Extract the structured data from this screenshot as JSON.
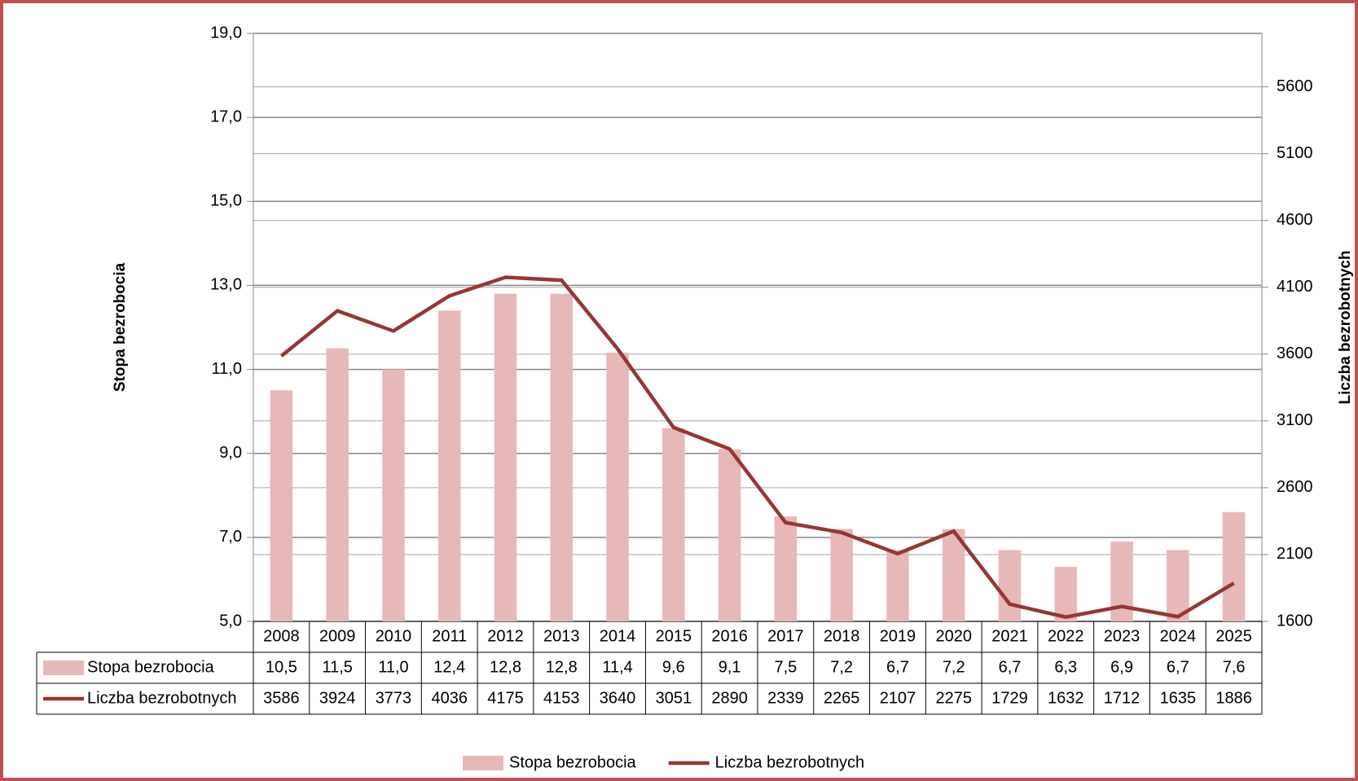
{
  "chart_data": {
    "type": "bar-line",
    "categories": [
      "2008",
      "2009",
      "2010",
      "2011",
      "2012",
      "2013",
      "2014",
      "2015",
      "2016",
      "2017",
      "2018",
      "2019",
      "2020",
      "2021",
      "2022",
      "2023",
      "2024",
      "2025"
    ],
    "series": [
      {
        "name": "Stopa bezrobocia",
        "type": "bar",
        "color": "#e6b8b7",
        "values": [
          10.5,
          11.5,
          11.0,
          12.4,
          12.8,
          12.8,
          11.4,
          9.6,
          9.1,
          7.5,
          7.2,
          6.7,
          7.2,
          6.7,
          6.3,
          6.9,
          6.7,
          7.6
        ],
        "value_labels": [
          "10,5",
          "11,5",
          "11,0",
          "12,4",
          "12,8",
          "12,8",
          "11,4",
          "9,6",
          "9,1",
          "7,5",
          "7,2",
          "6,7",
          "7,2",
          "6,7",
          "6,3",
          "6,9",
          "6,7",
          "7,6"
        ]
      },
      {
        "name": "Liczba bezrobotnych",
        "type": "line",
        "axis": "y2",
        "color": "#953735",
        "values": [
          3586,
          3924,
          3773,
          4036,
          4175,
          4153,
          3640,
          3051,
          2890,
          2339,
          2265,
          2107,
          2275,
          1729,
          1632,
          1712,
          1635,
          1886
        ]
      }
    ],
    "y_label": "Stopa bezrobocia",
    "y2_label": "Liczba  bezrobotnych",
    "ylim": [
      5,
      19
    ],
    "yticks": [
      {
        "value": 5,
        "label": "5,0"
      },
      {
        "value": 7,
        "label": "7,0"
      },
      {
        "value": 9,
        "label": "9,0"
      },
      {
        "value": 11,
        "label": "11,0"
      },
      {
        "value": 13,
        "label": "13,0"
      },
      {
        "value": 15,
        "label": "15,0"
      },
      {
        "value": 17,
        "label": "17,0"
      },
      {
        "value": 19,
        "label": "19,0"
      }
    ],
    "y2lim": [
      1600,
      6000
    ],
    "y2ticks": [
      1600,
      2100,
      2600,
      3100,
      3600,
      4100,
      4600,
      5100,
      5600
    ],
    "grid": true,
    "legend": "bottom",
    "data_table": true
  }
}
